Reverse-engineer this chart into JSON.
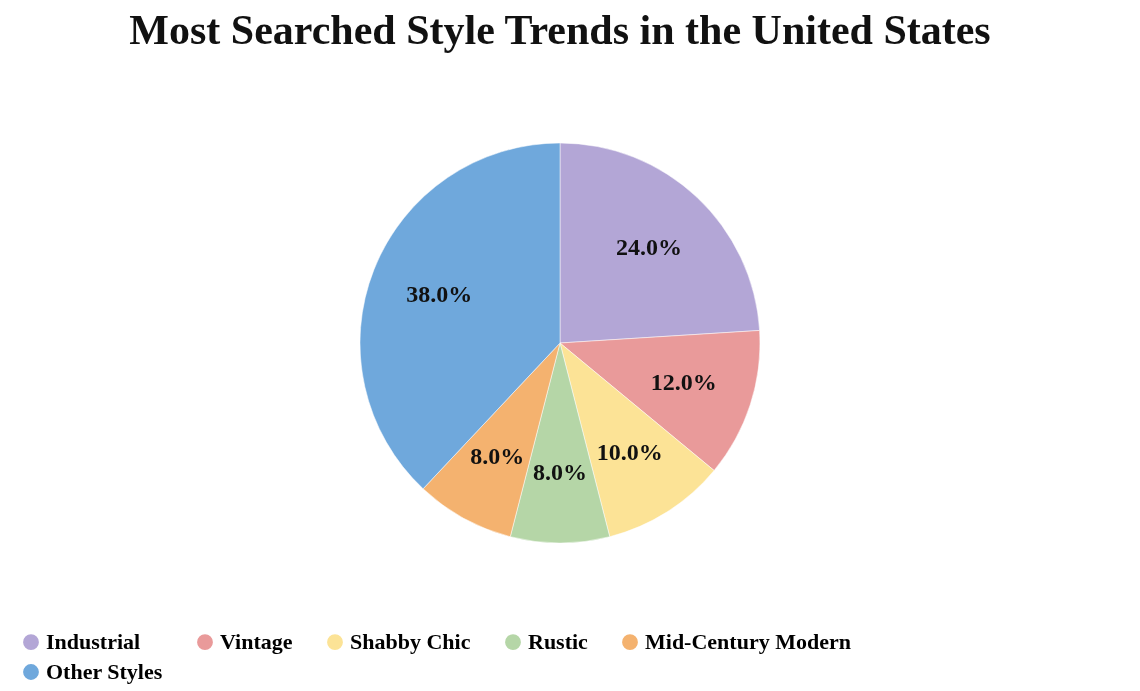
{
  "chart_data": {
    "type": "pie",
    "title": "Most Searched Style Trends in the United States",
    "categories": [
      "Industrial",
      "Vintage",
      "Shabby Chic",
      "Rustic",
      "Mid-Century Modern",
      "Other Styles"
    ],
    "values": [
      24,
      12,
      10,
      8,
      8,
      38
    ],
    "colors": [
      "#b3a6d6",
      "#e99a9a",
      "#fce396",
      "#b5d6a7",
      "#f4b26f",
      "#6fa8dc"
    ],
    "value_labels": [
      "24.0%",
      "12.0%",
      "10.0%",
      "8.0%",
      "8.0%",
      "38.0%"
    ],
    "legend": "bottom"
  }
}
